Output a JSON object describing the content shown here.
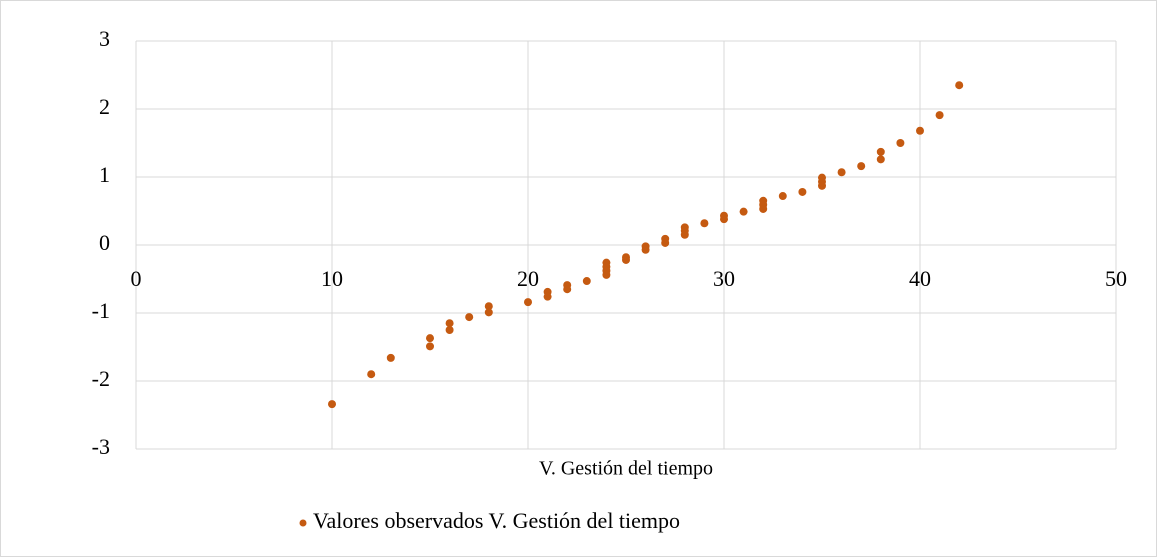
{
  "chart_data": {
    "type": "scatter",
    "x_label": "V. Gestión del tiempo",
    "x": [
      10,
      12,
      13,
      15,
      15,
      16,
      16,
      17,
      18,
      18,
      20,
      21,
      21,
      22,
      22,
      23,
      24,
      24,
      24,
      24,
      25,
      25,
      26,
      26,
      27,
      27,
      28,
      28,
      28,
      29,
      30,
      30,
      31,
      32,
      32,
      32,
      33,
      34,
      35,
      35,
      35,
      36,
      37,
      38,
      38,
      39,
      40,
      41,
      42
    ],
    "series": [
      {
        "name": "Valores observados V. Gestión del tiempo",
        "color": "#c55a11",
        "values": [
          -2.34,
          -1.9,
          -1.66,
          -1.37,
          -1.49,
          -1.15,
          -1.25,
          -1.06,
          -0.9,
          -0.99,
          -0.84,
          -0.69,
          -0.76,
          -0.59,
          -0.65,
          -0.53,
          -0.26,
          -0.32,
          -0.38,
          -0.44,
          -0.18,
          -0.22,
          -0.02,
          -0.07,
          0.09,
          0.03,
          0.26,
          0.21,
          0.15,
          0.32,
          0.43,
          0.38,
          0.49,
          0.65,
          0.59,
          0.53,
          0.72,
          0.78,
          0.99,
          0.93,
          0.87,
          1.07,
          1.16,
          1.37,
          1.26,
          1.5,
          1.68,
          1.91,
          2.35
        ]
      }
    ],
    "xlim": [
      0,
      50
    ],
    "xticks": [
      0,
      10,
      20,
      30,
      40,
      50
    ],
    "ylim": [
      -3,
      3
    ],
    "yticks": [
      -3,
      -2,
      -1,
      0,
      1,
      2,
      3
    ],
    "grid": true,
    "legend": "bottom"
  }
}
